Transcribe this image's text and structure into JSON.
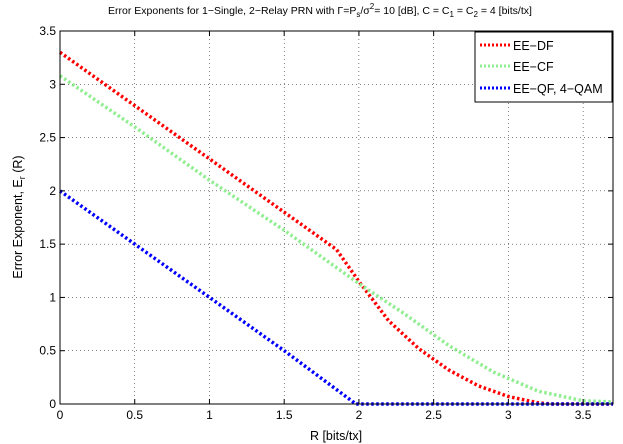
{
  "chart_data": {
    "type": "line",
    "title_parts": {
      "t1": "Error Exponents for 1−Single, 2−Relay PRN with Γ=P",
      "s": "s",
      "t2": "/σ",
      "sup2": "2",
      "t3": "= 10 [dB], C = C",
      "one": "1",
      "t4": " = C",
      "two": "2",
      "t5": " = 4 [bits/tx]"
    },
    "xlabel": "R [bits/tx]",
    "ylabel_main": "Error Exponent, E",
    "ylabel_sub": "r",
    "ylabel_tail": " (R)",
    "xlim": [
      0,
      3.7
    ],
    "ylim": [
      0,
      3.5
    ],
    "x_ticks": [
      0,
      0.5,
      1,
      1.5,
      2,
      2.5,
      3,
      3.5
    ],
    "x_tick_labels": [
      "0",
      "0.5",
      "1",
      "1.5",
      "2",
      "2.5",
      "3",
      "3.5"
    ],
    "y_ticks": [
      0,
      0.5,
      1,
      1.5,
      2,
      2.5,
      3,
      3.5
    ],
    "y_tick_labels": [
      "0",
      "0.5",
      "1",
      "1.5",
      "2",
      "2.5",
      "3",
      "3.5"
    ],
    "grid": true,
    "legend_position": "top-right",
    "series": [
      {
        "name": "EE−DF",
        "color": "#ff0000",
        "style": "dotted",
        "points": [
          [
            0,
            3.3
          ],
          [
            0.5,
            2.8
          ],
          [
            1,
            2.3
          ],
          [
            1.5,
            1.8
          ],
          [
            1.85,
            1.45
          ],
          [
            2,
            1.15
          ],
          [
            2.2,
            0.78
          ],
          [
            2.4,
            0.52
          ],
          [
            2.6,
            0.32
          ],
          [
            2.8,
            0.17
          ],
          [
            3,
            0.07
          ],
          [
            3.2,
            0.01
          ],
          [
            3.3,
            0
          ],
          [
            3.7,
            0
          ]
        ]
      },
      {
        "name": "EE−CF",
        "color": "#90ee90",
        "style": "dotted",
        "points": [
          [
            0,
            3.08
          ],
          [
            0.5,
            2.6
          ],
          [
            1,
            2.1
          ],
          [
            1.5,
            1.63
          ],
          [
            2,
            1.13
          ],
          [
            2.3,
            0.85
          ],
          [
            2.6,
            0.55
          ],
          [
            2.9,
            0.3
          ],
          [
            3.2,
            0.12
          ],
          [
            3.5,
            0.03
          ],
          [
            3.7,
            0.02
          ]
        ]
      },
      {
        "name": "EE−QF, 4−QAM",
        "color": "#0000ff",
        "style": "dotted",
        "points": [
          [
            0,
            2
          ],
          [
            0.5,
            1.5
          ],
          [
            1,
            1
          ],
          [
            1.5,
            0.5
          ],
          [
            1.98,
            0
          ],
          [
            3.7,
            0
          ]
        ]
      }
    ]
  }
}
